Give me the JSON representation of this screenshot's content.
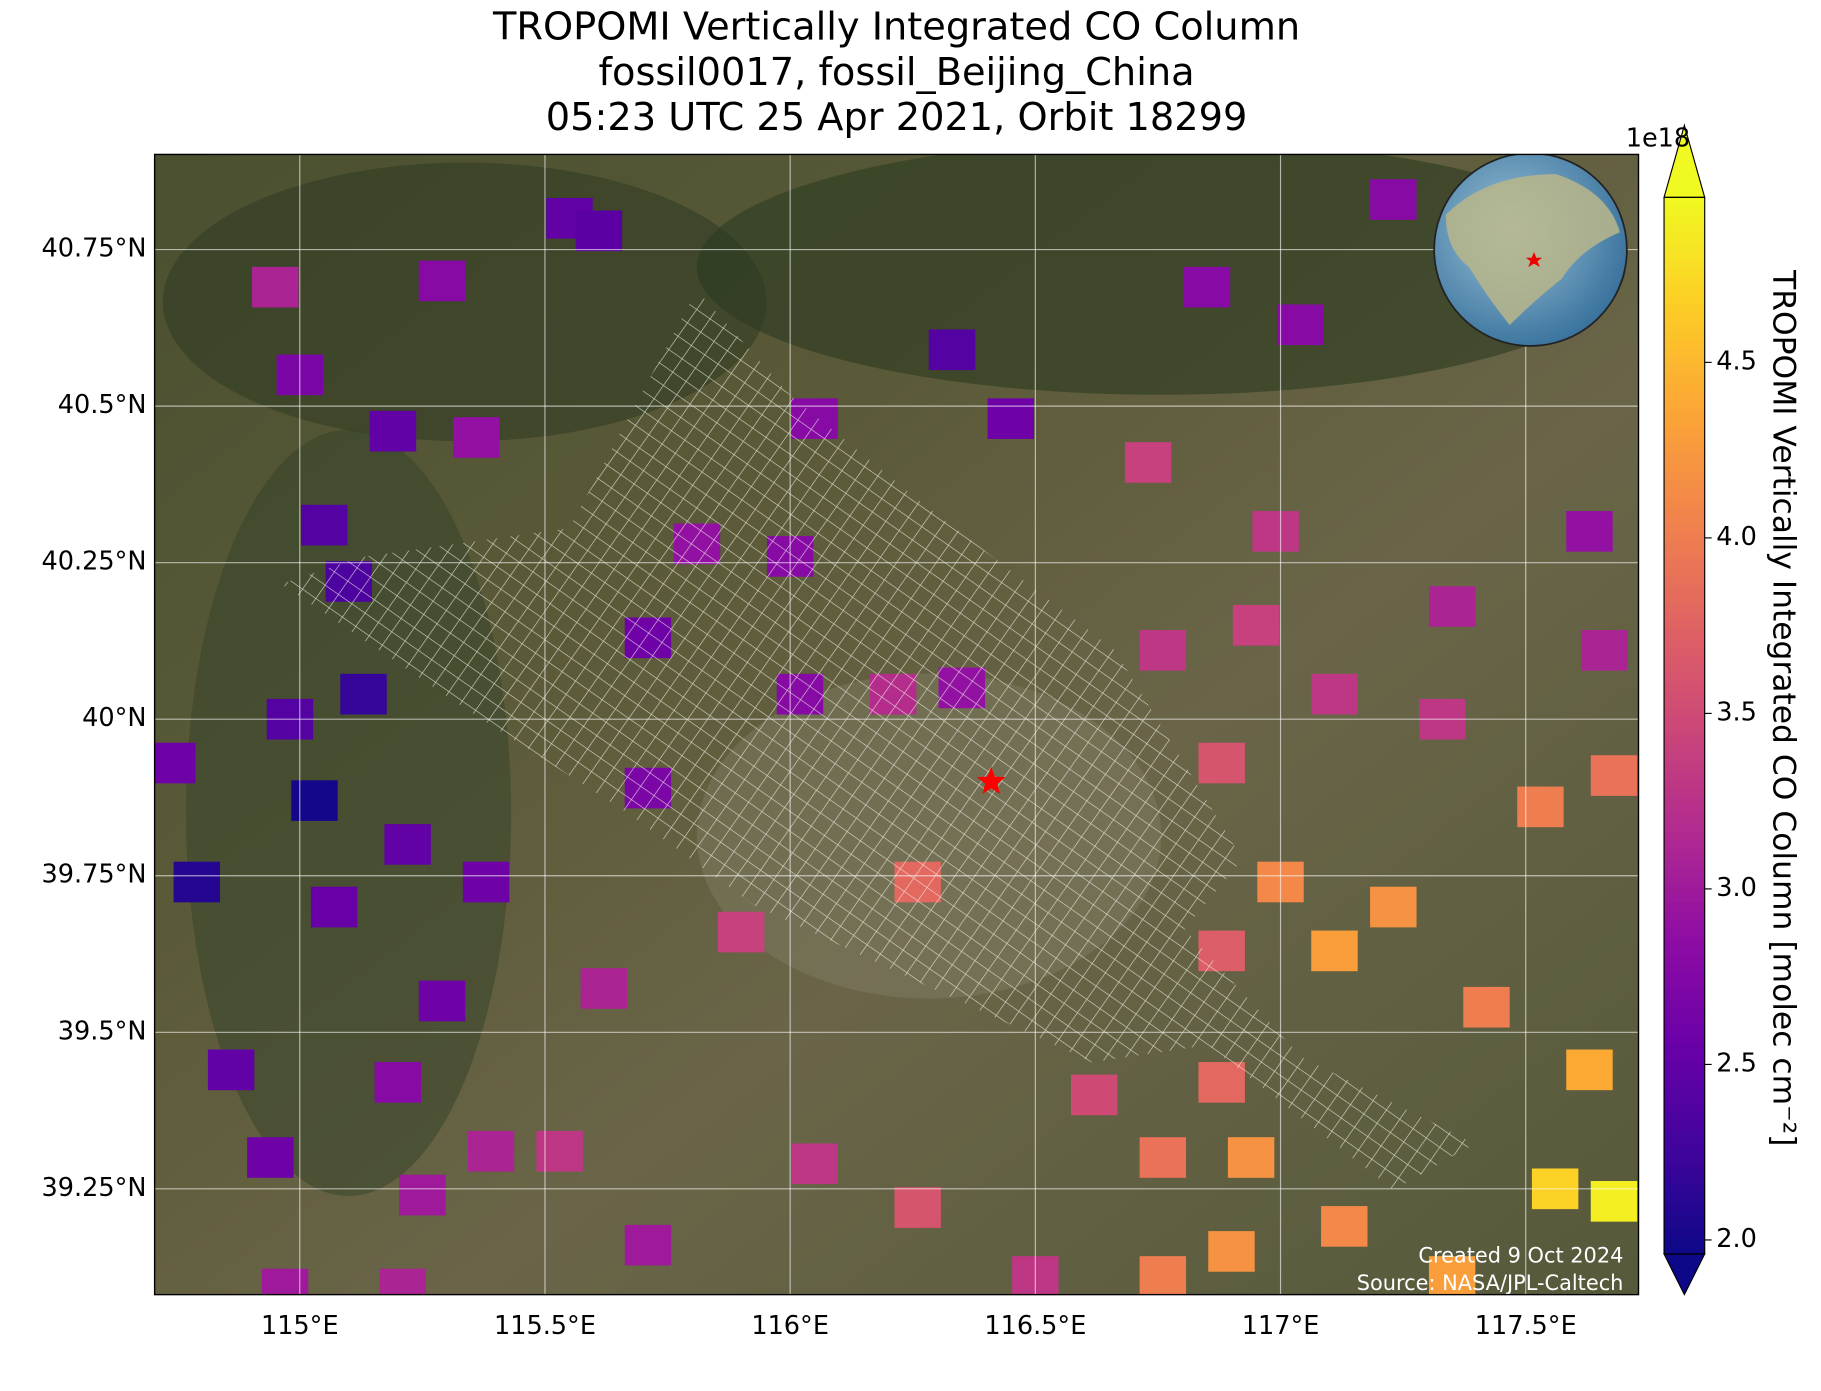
{
  "chart_data": {
    "type": "map",
    "title": [
      "TROPOMI Vertically Integrated CO Column",
      "fossil0017, fossil_Beijing_China",
      "05:23 UTC 25 Apr 2021, Orbit 18299"
    ],
    "xlim": [
      114.704,
      117.73
    ],
    "ylim": [
      39.081,
      40.902
    ],
    "xticks": [
      {
        "value": 115,
        "label": "115°E"
      },
      {
        "value": 115.5,
        "label": "115.5°E"
      },
      {
        "value": 116,
        "label": "116°E"
      },
      {
        "value": 116.5,
        "label": "116.5°E"
      },
      {
        "value": 117,
        "label": "117°E"
      },
      {
        "value": 117.5,
        "label": "117.5°E"
      }
    ],
    "yticks": [
      {
        "value": 39.25,
        "label": "39.25°N"
      },
      {
        "value": 39.5,
        "label": "39.5°N"
      },
      {
        "value": 39.75,
        "label": "39.75°N"
      },
      {
        "value": 40,
        "label": "40°N"
      },
      {
        "value": 40.25,
        "label": "40.25°N"
      },
      {
        "value": 40.5,
        "label": "40.5°N"
      },
      {
        "value": 40.75,
        "label": "40.75°N"
      }
    ],
    "grid": true,
    "site": {
      "lon": 116.41,
      "lat": 39.9
    },
    "colorbar": {
      "label": "TROPOMI Vertically Integrated CO Column [molec cm⁻²]",
      "exponent": "1e18",
      "colormap": "plasma",
      "clim": [
        1.96,
        4.97
      ],
      "ticks": [
        {
          "value": 2,
          "label": "2.0"
        },
        2.5,
        {
          "value": 3,
          "label": "3.0"
        },
        3.5,
        {
          "value": 4,
          "label": "4.0"
        },
        4.5
      ]
    },
    "credits": [
      "Created 9 Oct 2024",
      "Source: NASA/JPL-Caltech"
    ],
    "pixels": [
      {
        "lon": 115.55,
        "lat": 40.8,
        "value": 2.5
      },
      {
        "lon": 115.61,
        "lat": 40.78,
        "value": 2.45
      },
      {
        "lon": 115.29,
        "lat": 40.7,
        "value": 2.8
      },
      {
        "lon": 114.95,
        "lat": 40.69,
        "value": 3.1
      },
      {
        "lon": 115.0,
        "lat": 40.55,
        "value": 2.7
      },
      {
        "lon": 115.19,
        "lat": 40.46,
        "value": 2.5
      },
      {
        "lon": 115.36,
        "lat": 40.45,
        "value": 2.9
      },
      {
        "lon": 115.05,
        "lat": 40.31,
        "value": 2.4
      },
      {
        "lon": 115.1,
        "lat": 40.22,
        "value": 2.35
      },
      {
        "lon": 115.13,
        "lat": 40.04,
        "value": 2.2
      },
      {
        "lon": 114.98,
        "lat": 40.0,
        "value": 2.4
      },
      {
        "lon": 114.74,
        "lat": 39.93,
        "value": 2.6
      },
      {
        "lon": 115.03,
        "lat": 39.87,
        "value": 2.0
      },
      {
        "lon": 114.79,
        "lat": 39.74,
        "value": 2.1
      },
      {
        "lon": 115.22,
        "lat": 39.8,
        "value": 2.5
      },
      {
        "lon": 115.07,
        "lat": 39.7,
        "value": 2.55
      },
      {
        "lon": 115.38,
        "lat": 39.74,
        "value": 2.6
      },
      {
        "lon": 115.29,
        "lat": 39.55,
        "value": 2.6
      },
      {
        "lon": 114.86,
        "lat": 39.44,
        "value": 2.5
      },
      {
        "lon": 115.2,
        "lat": 39.42,
        "value": 2.8
      },
      {
        "lon": 114.94,
        "lat": 39.3,
        "value": 2.6
      },
      {
        "lon": 115.39,
        "lat": 39.31,
        "value": 3.1
      },
      {
        "lon": 115.25,
        "lat": 39.24,
        "value": 3.0
      },
      {
        "lon": 114.97,
        "lat": 39.09,
        "value": 3.0
      },
      {
        "lon": 115.21,
        "lat": 39.09,
        "value": 3.1
      },
      {
        "lon": 115.62,
        "lat": 39.57,
        "value": 3.1
      },
      {
        "lon": 115.53,
        "lat": 39.31,
        "value": 3.3
      },
      {
        "lon": 115.71,
        "lat": 39.16,
        "value": 3.0
      },
      {
        "lon": 115.9,
        "lat": 39.66,
        "value": 3.4
      },
      {
        "lon": 116.05,
        "lat": 39.29,
        "value": 3.3
      },
      {
        "lon": 116.26,
        "lat": 39.74,
        "value": 3.8
      },
      {
        "lon": 116.26,
        "lat": 39.22,
        "value": 3.6
      },
      {
        "lon": 116.5,
        "lat": 39.11,
        "value": 3.3
      },
      {
        "lon": 116.33,
        "lat": 40.59,
        "value": 2.4
      },
      {
        "lon": 116.45,
        "lat": 40.48,
        "value": 2.6
      },
      {
        "lon": 116.05,
        "lat": 40.48,
        "value": 2.8
      },
      {
        "lon": 116.85,
        "lat": 40.69,
        "value": 2.8
      },
      {
        "lon": 117.04,
        "lat": 40.63,
        "value": 2.8
      },
      {
        "lon": 117.23,
        "lat": 40.83,
        "value": 2.8
      },
      {
        "lon": 116.73,
        "lat": 40.41,
        "value": 3.4
      },
      {
        "lon": 116.99,
        "lat": 40.3,
        "value": 3.3
      },
      {
        "lon": 116.76,
        "lat": 40.11,
        "value": 3.3
      },
      {
        "lon": 116.95,
        "lat": 40.15,
        "value": 3.4
      },
      {
        "lon": 117.35,
        "lat": 40.18,
        "value": 3.1
      },
      {
        "lon": 117.63,
        "lat": 40.3,
        "value": 2.9
      },
      {
        "lon": 117.66,
        "lat": 40.11,
        "value": 3.1
      },
      {
        "lon": 117.11,
        "lat": 40.04,
        "value": 3.3
      },
      {
        "lon": 117.33,
        "lat": 40.0,
        "value": 3.3
      },
      {
        "lon": 116.88,
        "lat": 39.93,
        "value": 3.6
      },
      {
        "lon": 117.68,
        "lat": 39.91,
        "value": 3.9
      },
      {
        "lon": 117.53,
        "lat": 39.86,
        "value": 4.0
      },
      {
        "lon": 117.0,
        "lat": 39.74,
        "value": 4.1
      },
      {
        "lon": 117.23,
        "lat": 39.7,
        "value": 4.2
      },
      {
        "lon": 117.11,
        "lat": 39.63,
        "value": 4.3
      },
      {
        "lon": 116.88,
        "lat": 39.63,
        "value": 3.7
      },
      {
        "lon": 117.42,
        "lat": 39.54,
        "value": 4.0
      },
      {
        "lon": 117.63,
        "lat": 39.44,
        "value": 4.4
      },
      {
        "lon": 116.88,
        "lat": 39.42,
        "value": 3.8
      },
      {
        "lon": 116.62,
        "lat": 39.4,
        "value": 3.5
      },
      {
        "lon": 116.76,
        "lat": 39.3,
        "value": 3.9
      },
      {
        "lon": 116.94,
        "lat": 39.3,
        "value": 4.2
      },
      {
        "lon": 117.13,
        "lat": 39.19,
        "value": 4.1
      },
      {
        "lon": 117.56,
        "lat": 39.25,
        "value": 4.7
      },
      {
        "lon": 117.68,
        "lat": 39.23,
        "value": 4.9
      },
      {
        "lon": 116.9,
        "lat": 39.15,
        "value": 4.2
      },
      {
        "lon": 117.35,
        "lat": 39.11,
        "value": 4.3
      },
      {
        "lon": 116.76,
        "lat": 39.11,
        "value": 4.0
      },
      {
        "lon": 115.81,
        "lat": 40.28,
        "value": 2.9
      },
      {
        "lon": 115.71,
        "lat": 40.13,
        "value": 2.6
      },
      {
        "lon": 116.0,
        "lat": 40.26,
        "value": 2.8
      },
      {
        "lon": 116.02,
        "lat": 40.04,
        "value": 2.8
      },
      {
        "lon": 115.71,
        "lat": 39.89,
        "value": 2.7
      },
      {
        "lon": 116.21,
        "lat": 40.04,
        "value": 3.2
      },
      {
        "lon": 116.35,
        "lat": 40.05,
        "value": 2.9
      }
    ]
  }
}
